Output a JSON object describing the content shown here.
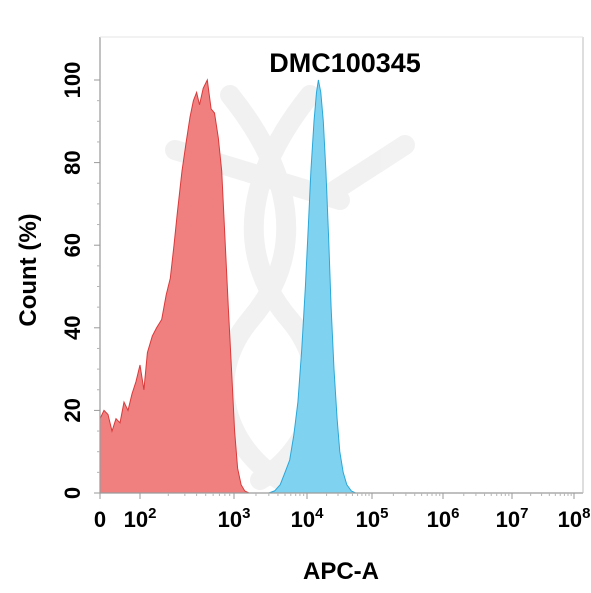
{
  "chart_data": {
    "type": "area",
    "title": "DMC100345",
    "xlabel": "APC-A",
    "ylabel": "Count  (%)",
    "x_scale": "biexponential",
    "xlim": [
      0,
      100000000
    ],
    "ylim": [
      0,
      105
    ],
    "x_ticks": [
      {
        "value": 0,
        "base": "0",
        "exp": ""
      },
      {
        "value": 100,
        "base": "10",
        "exp": "2"
      },
      {
        "value": 1000,
        "base": "10",
        "exp": "3"
      },
      {
        "value": 10000,
        "base": "10",
        "exp": "4"
      },
      {
        "value": 100000,
        "base": "10",
        "exp": "5"
      },
      {
        "value": 1000000,
        "base": "10",
        "exp": "6"
      },
      {
        "value": 10000000,
        "base": "10",
        "exp": "7"
      },
      {
        "value": 100000000,
        "base": "10",
        "exp": "8"
      }
    ],
    "y_ticks": [
      0,
      20,
      40,
      60,
      80,
      100
    ],
    "grid": false,
    "series": [
      {
        "color": "#f08080",
        "stroke": "#d83a3a",
        "points": [
          [
            0,
            18
          ],
          [
            10,
            20
          ],
          [
            20,
            19
          ],
          [
            30,
            15
          ],
          [
            40,
            18
          ],
          [
            50,
            17
          ],
          [
            60,
            22
          ],
          [
            70,
            20
          ],
          [
            80,
            24
          ],
          [
            90,
            27
          ],
          [
            100,
            31
          ],
          [
            110,
            25
          ],
          [
            120,
            34
          ],
          [
            135,
            38
          ],
          [
            150,
            40
          ],
          [
            170,
            42
          ],
          [
            190,
            48
          ],
          [
            210,
            52
          ],
          [
            230,
            60
          ],
          [
            250,
            68
          ],
          [
            280,
            78
          ],
          [
            310,
            85
          ],
          [
            340,
            91
          ],
          [
            370,
            95
          ],
          [
            400,
            97
          ],
          [
            430,
            94
          ],
          [
            470,
            98
          ],
          [
            520,
            100
          ],
          [
            570,
            93
          ],
          [
            620,
            92
          ],
          [
            680,
            86
          ],
          [
            740,
            78
          ],
          [
            800,
            62
          ],
          [
            870,
            45
          ],
          [
            940,
            30
          ],
          [
            1020,
            15
          ],
          [
            1120,
            6
          ],
          [
            1250,
            2
          ],
          [
            1400,
            0.5
          ],
          [
            1600,
            0
          ]
        ]
      },
      {
        "color": "#7fd3f0",
        "stroke": "#2ba7d8",
        "points": [
          [
            3000,
            0
          ],
          [
            3600,
            0.5
          ],
          [
            4300,
            2
          ],
          [
            5000,
            5
          ],
          [
            5800,
            8
          ],
          [
            6600,
            14
          ],
          [
            7500,
            22
          ],
          [
            8500,
            35
          ],
          [
            9500,
            50
          ],
          [
            10500,
            65
          ],
          [
            11500,
            78
          ],
          [
            12800,
            90
          ],
          [
            14000,
            97
          ],
          [
            15000,
            100
          ],
          [
            16300,
            97
          ],
          [
            17800,
            90
          ],
          [
            19500,
            78
          ],
          [
            21500,
            62
          ],
          [
            23500,
            45
          ],
          [
            26000,
            30
          ],
          [
            29000,
            18
          ],
          [
            32000,
            10
          ],
          [
            36000,
            5
          ],
          [
            41000,
            2
          ],
          [
            48000,
            0.5
          ],
          [
            56000,
            0
          ]
        ]
      }
    ]
  }
}
